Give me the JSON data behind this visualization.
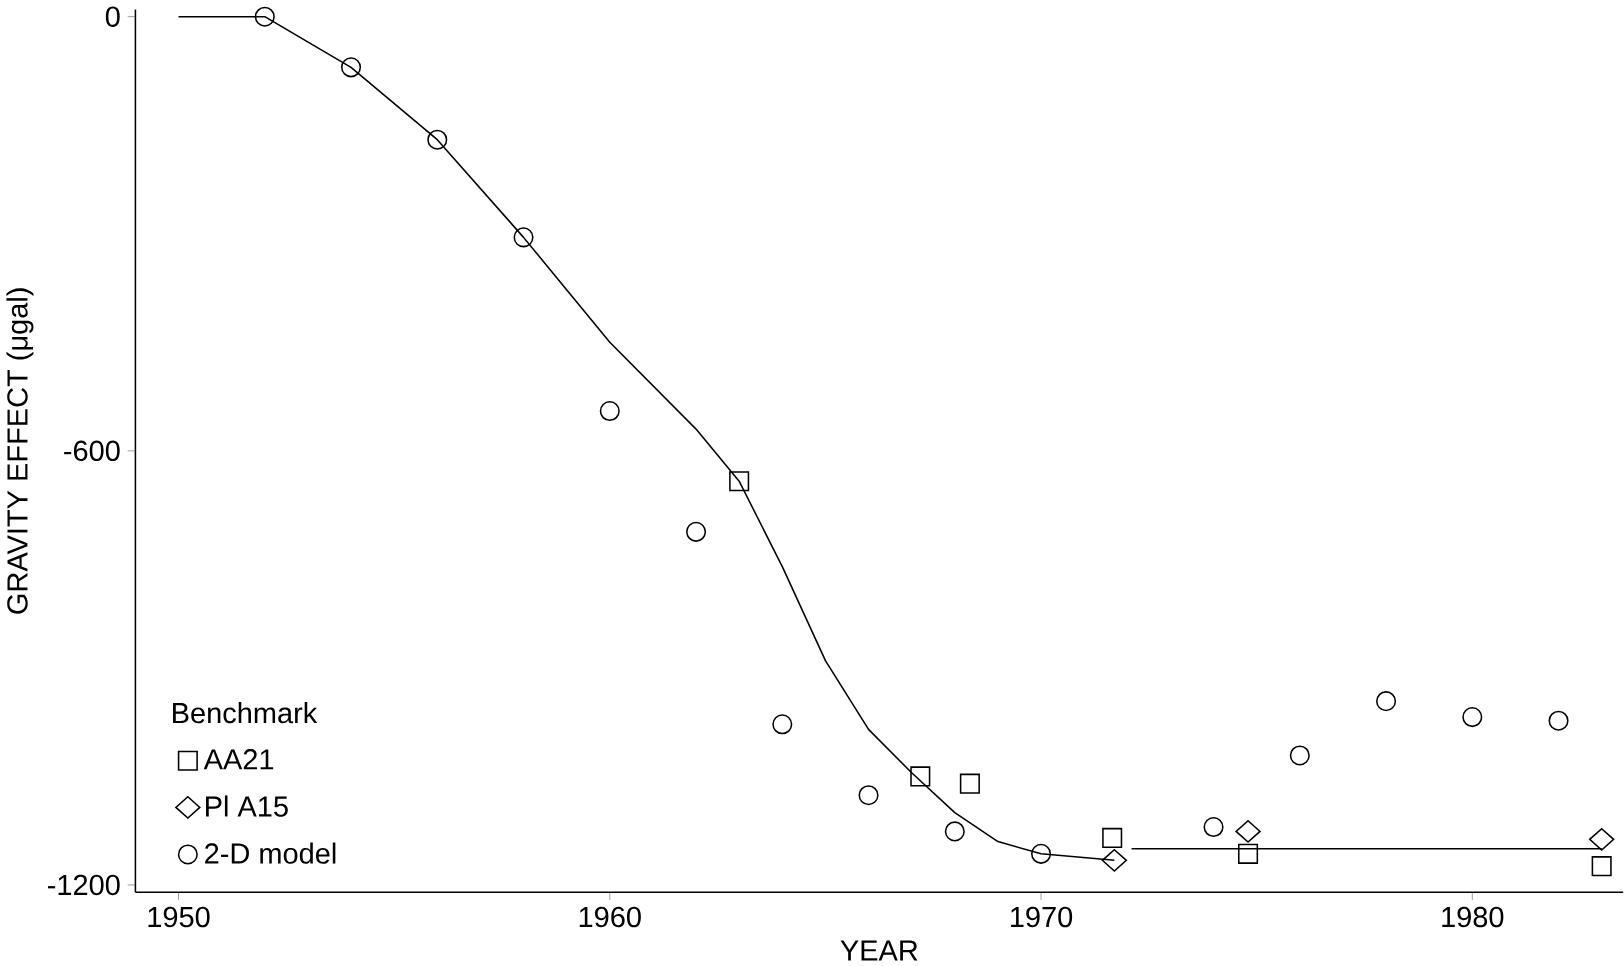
{
  "chart_data": {
    "type": "scatter",
    "xlabel": "YEAR",
    "ylabel": "GRAVITY EFFECT (μgal)",
    "legend_title": "Benchmark",
    "legend": "bottom left",
    "grid": false,
    "xlim": [
      1949,
      1983.5
    ],
    "ylim": [
      -1210,
      10
    ],
    "xticks": [
      1950,
      1960,
      1970,
      1980
    ],
    "yticks": [
      0,
      -600,
      -1200
    ],
    "series": [
      {
        "name": "AA21",
        "color": "#000000",
        "marker": "square",
        "x": [
          1963,
          1967.2,
          1968.35,
          1971.65,
          1974.8,
          1983
        ],
        "values": [
          -642,
          -1050,
          -1060,
          -1135,
          -1157,
          -1174
        ]
      },
      {
        "name": "Pl A15",
        "color": "#000000",
        "marker": "diamond",
        "x": [
          1971.7,
          1974.8,
          1983
        ],
        "values": [
          -1166,
          -1126,
          -1137
        ]
      },
      {
        "name": "2-D model",
        "color": "#000000",
        "marker": "circle",
        "x": [
          1952,
          1954,
          1956,
          1958,
          1960,
          1962,
          1964,
          1966,
          1968,
          1970,
          1974,
          1976,
          1978,
          1980,
          1982
        ],
        "values": [
          0,
          -70,
          -170,
          -305,
          -545,
          -712,
          -978,
          -1076,
          -1126,
          -1157,
          -1120,
          -1021,
          -946,
          -968,
          -973
        ]
      },
      {
        "type": "line",
        "color": "#000000",
        "marker": "none",
        "line_style": "solid",
        "x": [
          1950,
          1952,
          1954,
          1956,
          1958,
          1960,
          1962,
          1963,
          1964,
          1965,
          1966,
          1967,
          1968,
          1969,
          1970,
          1971.7,
          1972,
          1972.1,
          1983
        ],
        "values": [
          0,
          0,
          -70,
          -170,
          -305,
          -450,
          -570,
          -642,
          -760,
          -890,
          -985,
          -1045,
          -1100,
          -1140,
          -1157,
          -1166,
          null,
          -1150,
          -1150
        ]
      }
    ]
  }
}
